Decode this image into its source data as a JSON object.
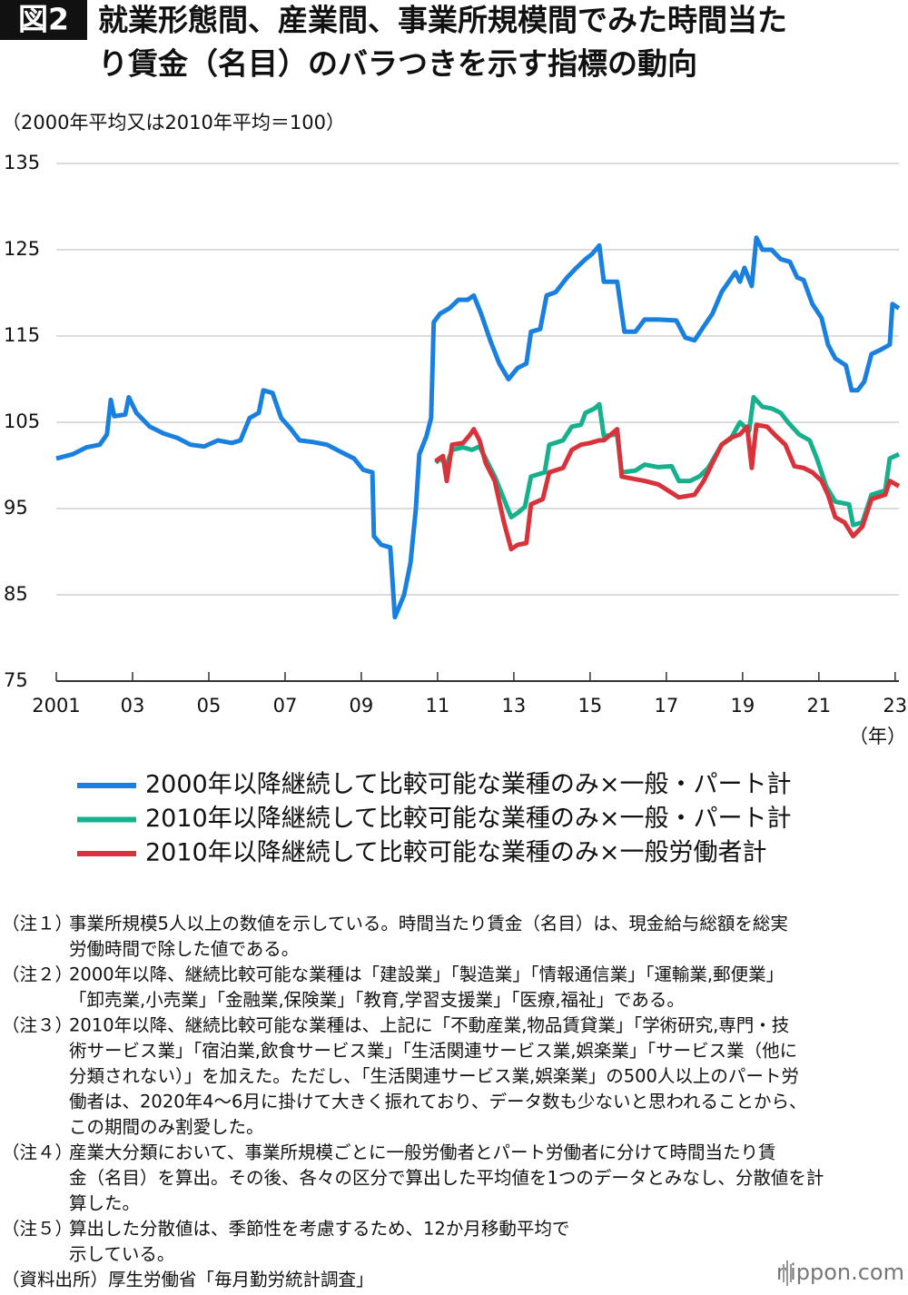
{
  "chart_data": {
    "type": "line",
    "figure_label": "図2",
    "title": [
      "就業形態間、産業間、事業所規模間でみた時間当た",
      "り賃金（名目）のバラつきを示す指標の動向"
    ],
    "unit_label": "（2000年平均又は2010年平均＝100）",
    "x_unit_label": "（年）",
    "xlim": [
      2001,
      2023.1
    ],
    "ylim": [
      75,
      135
    ],
    "yticks": [
      75,
      85,
      95,
      105,
      115,
      125,
      135
    ],
    "xticks": [
      2001,
      {
        "value": 2003,
        "label": "03"
      },
      {
        "value": 2005,
        "label": "05"
      },
      {
        "value": 2007,
        "label": "07"
      },
      {
        "value": 2009,
        "label": "09"
      },
      {
        "value": 2011,
        "label": "11"
      },
      {
        "value": 2013,
        "label": "13"
      },
      {
        "value": 2015,
        "label": "15"
      },
      {
        "value": 2017,
        "label": "17"
      },
      {
        "value": 2019,
        "label": "19"
      },
      {
        "value": 2021,
        "label": "21"
      },
      {
        "value": 2023,
        "label": "23"
      }
    ],
    "grid": true,
    "series": [
      {
        "name": "2000年以降継続して比較可能な業種のみ×一般・パート計",
        "color": "#1a80e0",
        "x": [
          2001.0,
          2001.43,
          2001.79,
          2002.14,
          2002.33,
          2002.43,
          2002.52,
          2002.81,
          2002.9,
          2003.1,
          2003.45,
          2003.81,
          2004.17,
          2004.52,
          2004.88,
          2005.24,
          2005.6,
          2005.83,
          2006.07,
          2006.31,
          2006.43,
          2006.67,
          2006.9,
          2007.14,
          2007.38,
          2007.74,
          2008.1,
          2008.45,
          2008.81,
          2009.05,
          2009.29,
          2009.33,
          2009.52,
          2009.76,
          2009.88,
          2010.12,
          2010.29,
          2010.43,
          2010.52,
          2010.71,
          2010.83,
          2010.9,
          2011.07,
          2011.31,
          2011.55,
          2011.79,
          2011.95,
          2012.14,
          2012.38,
          2012.62,
          2012.86,
          2013.1,
          2013.33,
          2013.45,
          2013.69,
          2013.86,
          2014.1,
          2014.4,
          2014.64,
          2014.88,
          2015.05,
          2015.24,
          2015.36,
          2015.71,
          2015.9,
          2016.19,
          2016.43,
          2016.79,
          2017.26,
          2017.5,
          2017.74,
          2017.98,
          2018.21,
          2018.45,
          2018.81,
          2018.93,
          2019.05,
          2019.24,
          2019.36,
          2019.52,
          2019.76,
          2020.0,
          2020.24,
          2020.43,
          2020.6,
          2020.83,
          2021.07,
          2021.24,
          2021.43,
          2021.71,
          2021.86,
          2022.02,
          2022.19,
          2022.38,
          2022.62,
          2022.86,
          2022.93,
          2023.1
        ],
        "values": [
          100.8,
          101.3,
          102.1,
          102.4,
          103.6,
          107.6,
          105.7,
          105.9,
          107.9,
          106.1,
          104.5,
          103.7,
          103.2,
          102.4,
          102.2,
          102.9,
          102.6,
          102.9,
          105.5,
          106.1,
          108.7,
          108.4,
          105.5,
          104.3,
          102.9,
          102.7,
          102.4,
          101.6,
          100.8,
          99.5,
          99.2,
          91.8,
          90.8,
          90.5,
          82.4,
          85.0,
          88.7,
          95.0,
          101.3,
          103.4,
          105.5,
          116.6,
          117.6,
          118.2,
          119.2,
          119.2,
          119.7,
          117.6,
          114.5,
          111.8,
          110.0,
          111.3,
          111.8,
          115.5,
          115.8,
          119.7,
          120.1,
          121.8,
          122.9,
          123.9,
          124.5,
          125.5,
          121.3,
          121.3,
          115.5,
          115.5,
          116.9,
          116.9,
          116.8,
          114.8,
          114.5,
          116.1,
          117.6,
          120.1,
          122.4,
          121.3,
          122.9,
          120.8,
          126.4,
          125.0,
          125.0,
          123.9,
          123.6,
          121.8,
          121.5,
          118.7,
          117.1,
          114.0,
          112.4,
          111.6,
          108.7,
          108.7,
          109.7,
          112.9,
          113.4,
          114.0,
          118.7,
          118.2
        ]
      },
      {
        "name": "2010年以降継続して比較可能な業種のみ×一般・パート計",
        "color": "#17b08c",
        "x": [
          2010.95,
          2011.07,
          2011.24,
          2011.38,
          2011.67,
          2011.9,
          2012.1,
          2012.26,
          2012.5,
          2012.74,
          2012.93,
          2013.1,
          2013.29,
          2013.45,
          2013.81,
          2013.93,
          2014.29,
          2014.52,
          2014.76,
          2014.88,
          2015.12,
          2015.24,
          2015.36,
          2015.71,
          2015.83,
          2016.19,
          2016.43,
          2016.79,
          2017.14,
          2017.33,
          2017.62,
          2017.86,
          2018.1,
          2018.45,
          2018.69,
          2018.93,
          2019.17,
          2019.29,
          2019.52,
          2019.76,
          2020.0,
          2020.19,
          2020.48,
          2020.76,
          2020.95,
          2021.19,
          2021.43,
          2021.79,
          2021.9,
          2022.14,
          2022.38,
          2022.74,
          2022.86,
          2023.1
        ],
        "values": [
          100.3,
          100.8,
          100.1,
          101.8,
          102.1,
          101.8,
          102.2,
          100.8,
          98.7,
          96.1,
          94.0,
          94.5,
          95.2,
          98.7,
          99.2,
          102.4,
          102.9,
          104.5,
          104.7,
          106.1,
          106.6,
          107.1,
          103.4,
          103.6,
          99.2,
          99.4,
          100.1,
          99.8,
          99.9,
          98.2,
          98.2,
          98.7,
          99.7,
          102.4,
          103.1,
          105.0,
          104.0,
          107.9,
          106.8,
          106.6,
          106.1,
          105.0,
          103.6,
          102.9,
          100.8,
          97.6,
          95.8,
          95.5,
          93.1,
          93.4,
          96.6,
          97.1,
          100.8,
          101.3
        ]
      },
      {
        "name": "2010年以降継続して比較可能な業種のみ×一般労働者計",
        "color": "#d8333a",
        "x": [
          2010.95,
          2011.14,
          2011.24,
          2011.38,
          2011.67,
          2011.86,
          2011.95,
          2012.1,
          2012.26,
          2012.5,
          2012.74,
          2012.93,
          2013.1,
          2013.33,
          2013.45,
          2013.76,
          2013.93,
          2014.29,
          2014.52,
          2014.76,
          2015.0,
          2015.24,
          2015.36,
          2015.71,
          2015.83,
          2016.19,
          2016.43,
          2016.79,
          2017.33,
          2017.74,
          2017.98,
          2018.21,
          2018.45,
          2018.69,
          2018.93,
          2019.12,
          2019.24,
          2019.36,
          2019.64,
          2019.88,
          2020.12,
          2020.36,
          2020.6,
          2020.83,
          2021.07,
          2021.24,
          2021.43,
          2021.67,
          2021.9,
          2022.14,
          2022.38,
          2022.74,
          2022.86,
          2023.1
        ],
        "values": [
          100.5,
          101.1,
          98.2,
          102.4,
          102.6,
          103.6,
          104.2,
          102.9,
          100.3,
          98.2,
          93.4,
          90.3,
          90.8,
          91.0,
          95.5,
          96.1,
          99.2,
          99.7,
          101.8,
          102.4,
          102.6,
          102.9,
          102.9,
          104.2,
          98.7,
          98.4,
          98.2,
          97.8,
          96.3,
          96.6,
          98.2,
          100.3,
          102.4,
          103.2,
          103.6,
          104.5,
          99.7,
          104.7,
          104.5,
          103.4,
          102.4,
          99.9,
          99.7,
          99.2,
          98.2,
          96.6,
          94.0,
          93.4,
          91.8,
          92.9,
          96.1,
          96.6,
          98.2,
          97.6
        ]
      }
    ]
  },
  "notes": [
    {
      "label": "（注１）",
      "lines": [
        "事業所規模5人以上の数値を示している。時間当たり賃金（名目）は、現金給与総額を総実",
        "労働時間で除した値である。"
      ]
    },
    {
      "label": "（注２）",
      "lines": [
        "2000年以降、継続比較可能な業種は「建設業」「製造業」「情報通信業」「運輸業,郵便業」",
        "「卸売業,小売業」「金融業,保険業」「教育,学習支援業」「医療,福祉」である。"
      ]
    },
    {
      "label": "（注３）",
      "lines": [
        "2010年以降、継続比較可能な業種は、上記に「不動産業,物品賃貸業」「学術研究,専門・技",
        "術サービス業」「宿泊業,飲食サービス業」「生活関連サービス業,娯楽業」「サービス業（他に",
        "分類されない）」を加えた。ただし、「生活関連サービス業,娯楽業」の500人以上のパート労",
        "働者は、2020年4～6月に掛けて大きく振れており、データ数も少ないと思われることから、",
        "この期間のみ割愛した。"
      ]
    },
    {
      "label": "（注４）",
      "lines": [
        "産業大分類において、事業所規模ごとに一般労働者とパート労働者に分けて時間当たり賃",
        "金（名目）を算出。その後、各々の区分で算出した平均値を1つのデータとみなし、分散値を計",
        "算した。"
      ]
    },
    {
      "label": "（注５）",
      "lines": [
        "算出した分散値は、季節性を考慮するため、12か月移動平均で",
        "示している。"
      ]
    }
  ],
  "source": "（資料出所）厚生労働省「毎月勤労統計調査」",
  "footer": {
    "brand": "nippon.com"
  }
}
